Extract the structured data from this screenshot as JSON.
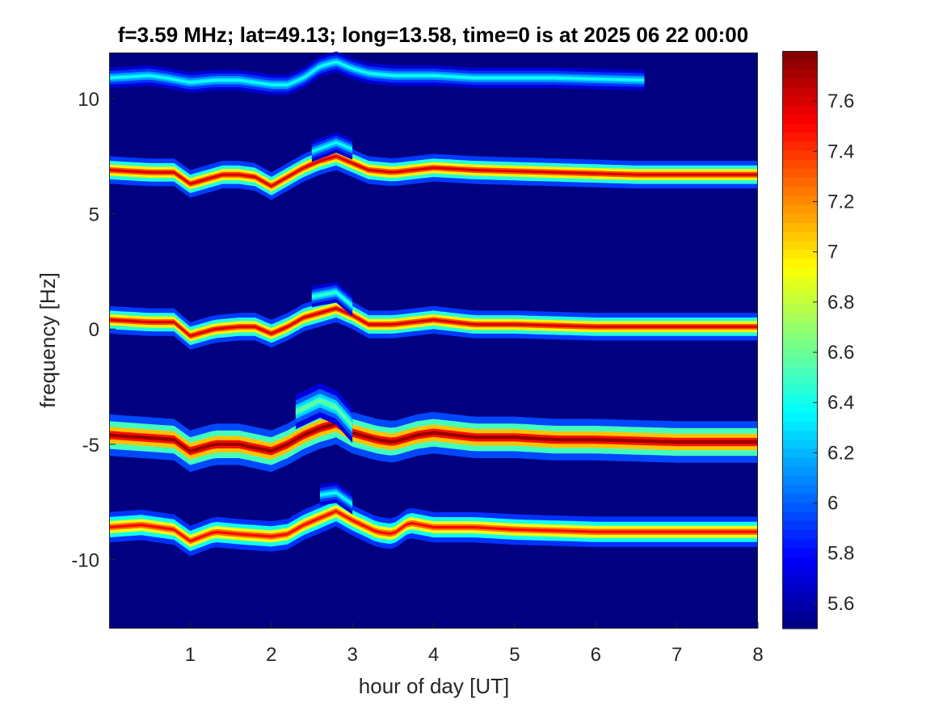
{
  "chart_data": {
    "type": "heatmap",
    "title": "f=3.59 MHz;  lat=49.13; long=13.58, time=0 is at 2025 06 22 00:00",
    "xlabel": "hour of day [UT]",
    "ylabel": "frequency [Hz]",
    "xlim": [
      0,
      8
    ],
    "ylim": [
      -13,
      12
    ],
    "x_ticks": [
      1,
      2,
      3,
      4,
      5,
      6,
      7,
      8
    ],
    "x_tick_labels": [
      "1",
      "2",
      "3",
      "4",
      "5",
      "6",
      "7",
      "8"
    ],
    "y_ticks": [
      10,
      5,
      0,
      -5,
      -10
    ],
    "y_tick_labels": [
      "10",
      "5",
      "0",
      "-5",
      "-10"
    ],
    "colorbar": {
      "colormap": "jet",
      "clim": [
        5.5,
        7.8
      ],
      "ticks": [
        7.6,
        7.4,
        7.2,
        7,
        6.8,
        6.6,
        6.4,
        6.2,
        6,
        5.8,
        5.6
      ],
      "tick_labels": [
        "7.6",
        "7.4",
        "7.2",
        "7",
        "6.8",
        "6.6",
        "6.4",
        "6.2",
        "6",
        "5.8",
        "5.6"
      ]
    },
    "background_value": 5.5,
    "traces": [
      {
        "points": [
          [
            0,
            10.9
          ],
          [
            0.5,
            11.0
          ],
          [
            0.7,
            10.9
          ],
          [
            1.0,
            10.7
          ],
          [
            1.3,
            10.8
          ],
          [
            1.6,
            10.8
          ],
          [
            2.0,
            10.6
          ],
          [
            2.2,
            10.6
          ],
          [
            2.4,
            10.9
          ],
          [
            2.6,
            11.4
          ],
          [
            2.8,
            11.6
          ],
          [
            3.0,
            11.3
          ],
          [
            3.2,
            11.1
          ],
          [
            3.5,
            11.0
          ],
          [
            4.0,
            11.0
          ],
          [
            4.5,
            10.9
          ],
          [
            5.0,
            10.9
          ],
          [
            5.5,
            10.9
          ],
          [
            6.0,
            10.85
          ],
          [
            6.6,
            10.8
          ]
        ],
        "peak": 6.4,
        "width": 0.15,
        "end": 6.6
      },
      {
        "points": [
          [
            0,
            6.9
          ],
          [
            0.5,
            6.8
          ],
          [
            0.8,
            6.8
          ],
          [
            1.0,
            6.3
          ],
          [
            1.2,
            6.5
          ],
          [
            1.4,
            6.7
          ],
          [
            1.6,
            6.7
          ],
          [
            1.8,
            6.6
          ],
          [
            2.0,
            6.2
          ],
          [
            2.2,
            6.6
          ],
          [
            2.4,
            7.0
          ],
          [
            2.6,
            7.3
          ],
          [
            2.8,
            7.5
          ],
          [
            3.0,
            7.2
          ],
          [
            3.2,
            6.9
          ],
          [
            3.5,
            6.8
          ],
          [
            4.0,
            7.0
          ],
          [
            4.5,
            6.9
          ],
          [
            5.0,
            6.85
          ],
          [
            5.5,
            6.8
          ],
          [
            6.0,
            6.75
          ],
          [
            6.5,
            6.7
          ],
          [
            7.0,
            6.7
          ],
          [
            8.0,
            6.7
          ]
        ],
        "peak": 7.6,
        "width": 0.2,
        "end": 8
      },
      {
        "points": [
          [
            0,
            0.4
          ],
          [
            0.5,
            0.3
          ],
          [
            0.8,
            0.3
          ],
          [
            1.0,
            -0.3
          ],
          [
            1.3,
            0.0
          ],
          [
            1.6,
            0.1
          ],
          [
            1.8,
            0.1
          ],
          [
            2.0,
            -0.2
          ],
          [
            2.2,
            0.1
          ],
          [
            2.4,
            0.5
          ],
          [
            2.6,
            0.7
          ],
          [
            2.8,
            0.9
          ],
          [
            3.0,
            0.6
          ],
          [
            3.2,
            0.2
          ],
          [
            3.5,
            0.2
          ],
          [
            4.0,
            0.4
          ],
          [
            4.5,
            0.2
          ],
          [
            5.0,
            0.2
          ],
          [
            5.5,
            0.15
          ],
          [
            6.0,
            0.1
          ],
          [
            7.0,
            0.1
          ],
          [
            8.0,
            0.1
          ]
        ],
        "peak": 7.6,
        "width": 0.2,
        "end": 8
      },
      {
        "points": [
          [
            0,
            -4.6
          ],
          [
            0.4,
            -4.7
          ],
          [
            0.8,
            -4.8
          ],
          [
            1.0,
            -5.3
          ],
          [
            1.3,
            -5.0
          ],
          [
            1.6,
            -5.0
          ],
          [
            2.0,
            -5.3
          ],
          [
            2.2,
            -5.0
          ],
          [
            2.4,
            -4.6
          ],
          [
            2.6,
            -4.3
          ],
          [
            2.8,
            -4.1
          ],
          [
            3.0,
            -4.5
          ],
          [
            3.3,
            -4.8
          ],
          [
            3.5,
            -4.9
          ],
          [
            3.8,
            -4.6
          ],
          [
            4.0,
            -4.5
          ],
          [
            4.5,
            -4.7
          ],
          [
            5.0,
            -4.7
          ],
          [
            5.5,
            -4.8
          ],
          [
            6.0,
            -4.8
          ],
          [
            7.0,
            -4.9
          ],
          [
            8.0,
            -4.9
          ]
        ],
        "peak": 7.75,
        "width": 0.3,
        "end": 8
      },
      {
        "points": [
          [
            0,
            -8.6
          ],
          [
            0.4,
            -8.5
          ],
          [
            0.8,
            -8.7
          ],
          [
            1.0,
            -9.2
          ],
          [
            1.3,
            -8.8
          ],
          [
            1.6,
            -8.9
          ],
          [
            2.0,
            -9.0
          ],
          [
            2.2,
            -8.9
          ],
          [
            2.4,
            -8.5
          ],
          [
            2.6,
            -8.2
          ],
          [
            2.8,
            -7.9
          ],
          [
            3.0,
            -8.3
          ],
          [
            3.3,
            -8.8
          ],
          [
            3.5,
            -8.9
          ],
          [
            3.7,
            -8.4
          ],
          [
            4.0,
            -8.6
          ],
          [
            4.5,
            -8.6
          ],
          [
            5.0,
            -8.7
          ],
          [
            6.0,
            -8.8
          ],
          [
            7.0,
            -8.8
          ],
          [
            8.0,
            -8.8
          ]
        ],
        "peak": 7.5,
        "width": 0.22,
        "end": 8
      }
    ],
    "spurs": [
      {
        "points": [
          [
            2.3,
            -3.6
          ],
          [
            2.6,
            -3.1
          ],
          [
            2.8,
            -3.4
          ],
          [
            3.0,
            -4.2
          ]
        ],
        "peak": 6.6,
        "width": 0.25
      },
      {
        "points": [
          [
            2.5,
            1.4
          ],
          [
            2.8,
            1.6
          ],
          [
            3.0,
            1.0
          ]
        ],
        "peak": 6.5,
        "width": 0.15
      },
      {
        "points": [
          [
            2.5,
            7.7
          ],
          [
            2.8,
            8.1
          ],
          [
            3.0,
            7.8
          ]
        ],
        "peak": 6.4,
        "width": 0.15
      },
      {
        "points": [
          [
            2.6,
            -7.2
          ],
          [
            2.8,
            -7.1
          ],
          [
            3.0,
            -7.6
          ]
        ],
        "peak": 6.4,
        "width": 0.15
      }
    ]
  }
}
